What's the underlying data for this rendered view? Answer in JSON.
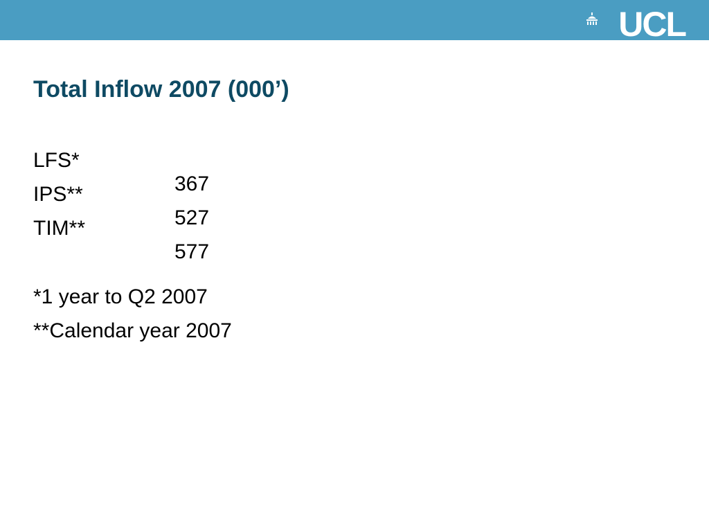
{
  "header": {
    "logo": "UCL"
  },
  "title": "Total Inflow 2007 (000’)",
  "rows": [
    [
      "LFS*",
      367
    ],
    [
      "IPS**",
      527
    ],
    [
      "TIM**",
      577
    ]
  ],
  "notes": [
    "*1 year to Q2 2007",
    "**Calendar year 2007"
  ]
}
